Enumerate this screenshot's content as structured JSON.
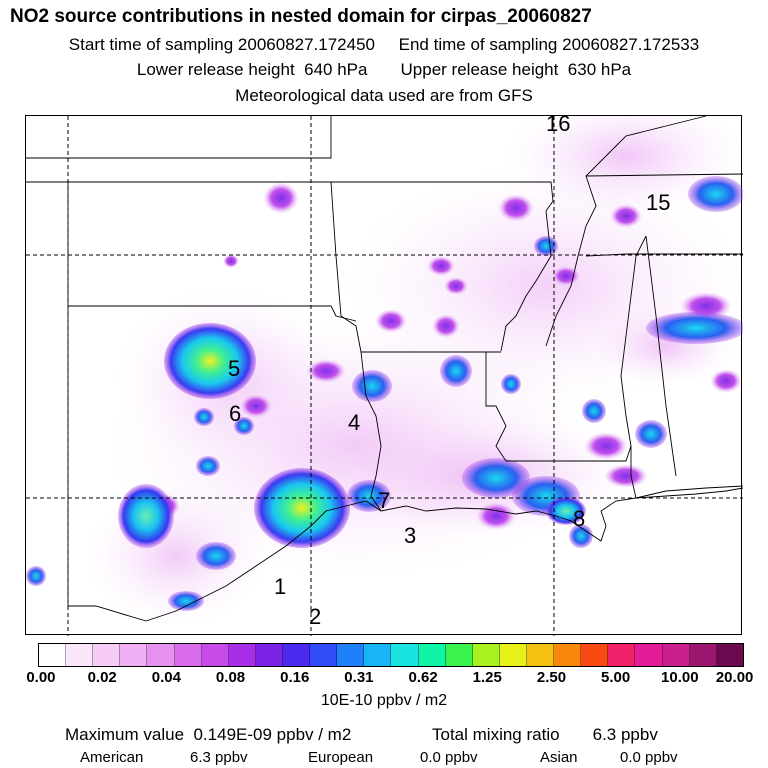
{
  "header": {
    "title": "NO2 source contributions in nested domain for cirpas_20060827",
    "sampling_start": "Start time of sampling 20060827.172450",
    "sampling_end": "End time of sampling 20060827.172533",
    "lower_release": "Lower release height  640 hPa",
    "upper_release": "Upper release height  630 hPa",
    "met_data": "Meteorological data used are from GFS"
  },
  "map": {
    "labels": [
      "1",
      "2",
      "3",
      "4",
      "5",
      "6",
      "7",
      "8",
      "15",
      "16"
    ]
  },
  "colorbar": {
    "colors": [
      "#ffffff",
      "#fbe6fb",
      "#f6ccf6",
      "#f0b0f3",
      "#e690f0",
      "#d96cec",
      "#c84ae8",
      "#a92ee8",
      "#7c24e6",
      "#4c2af0",
      "#2f4cf8",
      "#1f80fb",
      "#19b4f6",
      "#1ae4e0",
      "#10f4a6",
      "#39f24c",
      "#a8f01e",
      "#e8f01a",
      "#f4c012",
      "#f8880c",
      "#f84a12",
      "#f0206a",
      "#e41c9a",
      "#c8208c",
      "#9c1670",
      "#6c0a50"
    ],
    "tick_labels": [
      "0.00",
      "0.02",
      "0.04",
      "0.08",
      "0.16",
      "0.31",
      "0.62",
      "1.25",
      "2.50",
      "5.00",
      "10.00",
      "20.00"
    ],
    "units": "10E-10 ppbv / m2"
  },
  "summary": {
    "max_value": "Maximum value  0.149E-09 ppbv / m2",
    "total_label": "Total mixing ratio",
    "total_value": "6.3 ppbv",
    "american_label": "American",
    "american_value": "6.3 ppbv",
    "european_label": "European",
    "european_value": "0.0 ppbv",
    "asian_label": "Asian",
    "asian_value": "0.0 ppbv"
  }
}
